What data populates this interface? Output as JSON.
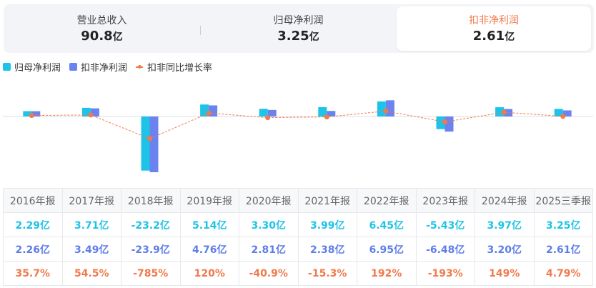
{
  "summary": {
    "tabs": [
      {
        "label": "营业总收入",
        "value": "90.8",
        "unit": "亿"
      },
      {
        "label": "归母净利润",
        "value": "3.25",
        "unit": "亿"
      },
      {
        "label": "扣非净利润",
        "value": "2.61",
        "unit": "亿"
      }
    ]
  },
  "legend": {
    "s1": "归母净利润",
    "s2": "扣非净利润",
    "s3": "扣非同比增长率"
  },
  "colors": {
    "s1": "#1ec3e8",
    "s2": "#6b83ee",
    "s3": "#f07a4c"
  },
  "chart_data": {
    "type": "bar",
    "categories": [
      "2016年报",
      "2017年报",
      "2018年报",
      "2019年报",
      "2020年报",
      "2021年报",
      "2022年报",
      "2023年报",
      "2024年报",
      "2025三季报"
    ],
    "series": [
      {
        "name": "归母净利润",
        "kind": "bar",
        "values": [
          2.29,
          3.71,
          -23.2,
          5.14,
          3.3,
          3.99,
          6.45,
          -5.43,
          3.97,
          3.25
        ],
        "labels": [
          "2.29亿",
          "3.71亿",
          "-23.2亿",
          "5.14亿",
          "3.30亿",
          "3.99亿",
          "6.45亿",
          "-5.43亿",
          "3.97亿",
          "3.25亿"
        ]
      },
      {
        "name": "扣非净利润",
        "kind": "bar",
        "values": [
          2.26,
          3.49,
          -23.9,
          4.76,
          2.81,
          2.38,
          6.95,
          -6.48,
          3.2,
          2.61
        ],
        "labels": [
          "2.26亿",
          "3.49亿",
          "-23.9亿",
          "4.76亿",
          "2.81亿",
          "2.38亿",
          "6.95亿",
          "-6.48亿",
          "3.20亿",
          "2.61亿"
        ]
      },
      {
        "name": "扣非同比增长率",
        "kind": "line",
        "values": [
          35.7,
          54.5,
          -785,
          120,
          -40.9,
          -15.3,
          192,
          -193,
          149,
          4.79
        ],
        "labels": [
          "35.7%",
          "54.5%",
          "-785%",
          "120%",
          "-40.9%",
          "-15.3%",
          "192%",
          "-193%",
          "149%",
          "4.79%"
        ]
      }
    ],
    "ylim_bars": [
      -23.9,
      6.95
    ],
    "ylim_rate": [
      -785,
      192
    ]
  }
}
